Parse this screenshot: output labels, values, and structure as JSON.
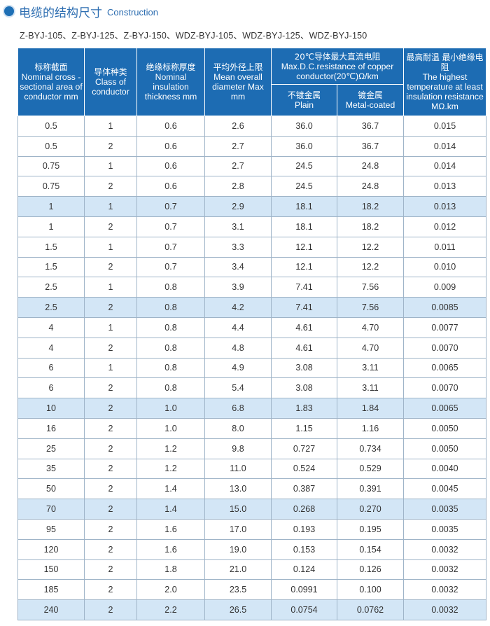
{
  "heading": {
    "title_cn": "电缆的结构尺寸",
    "title_en": "Construction"
  },
  "models": "Z-BYJ-105、Z-BYJ-125、Z-BYJ-150、WDZ-BYJ-105、WDZ-BYJ-125、WDZ-BYJ-150",
  "table": {
    "headers": {
      "area": {
        "cn": "标称截面",
        "en": "Nominal cross -sectional area of conductor mm"
      },
      "class": {
        "cn": "导体种类",
        "en": "Class of conductor"
      },
      "insulation": {
        "cn": "绝缘标称厚度",
        "en": "Nominal insulation thickness mm"
      },
      "diameter": {
        "cn": "平均外径上限",
        "en": "Mean overall diameter Max mm"
      },
      "resistance": {
        "cn": "20℃导体最大直流电阻",
        "en": "Max.D.C.resistance of copper conductor(20℃)Ω/km"
      },
      "plain": {
        "cn": "不镀金属",
        "en": "Plain"
      },
      "coated": {
        "cn": "镀金属",
        "en": "Metal-coated"
      },
      "temperature": {
        "cn": "最高耐温 最小绝缘电阻",
        "en": "The highest temperature at least insulation resistance MΩ.km"
      }
    },
    "rows": [
      {
        "area": "0.5",
        "class": "1",
        "insulation": "0.6",
        "diameter": "2.6",
        "plain": "36.0",
        "coated": "36.7",
        "resist": "0.015",
        "highlight": false
      },
      {
        "area": "0.5",
        "class": "2",
        "insulation": "0.6",
        "diameter": "2.7",
        "plain": "36.0",
        "coated": "36.7",
        "resist": "0.014",
        "highlight": false
      },
      {
        "area": "0.75",
        "class": "1",
        "insulation": "0.6",
        "diameter": "2.7",
        "plain": "24.5",
        "coated": "24.8",
        "resist": "0.014",
        "highlight": false
      },
      {
        "area": "0.75",
        "class": "2",
        "insulation": "0.6",
        "diameter": "2.8",
        "plain": "24.5",
        "coated": "24.8",
        "resist": "0.013",
        "highlight": false
      },
      {
        "area": "1",
        "class": "1",
        "insulation": "0.7",
        "diameter": "2.9",
        "plain": "18.1",
        "coated": "18.2",
        "resist": "0.013",
        "highlight": true
      },
      {
        "area": "1",
        "class": "2",
        "insulation": "0.7",
        "diameter": "3.1",
        "plain": "18.1",
        "coated": "18.2",
        "resist": "0.012",
        "highlight": false
      },
      {
        "area": "1.5",
        "class": "1",
        "insulation": "0.7",
        "diameter": "3.3",
        "plain": "12.1",
        "coated": "12.2",
        "resist": "0.011",
        "highlight": false
      },
      {
        "area": "1.5",
        "class": "2",
        "insulation": "0.7",
        "diameter": "3.4",
        "plain": "12.1",
        "coated": "12.2",
        "resist": "0.010",
        "highlight": false
      },
      {
        "area": "2.5",
        "class": "1",
        "insulation": "0.8",
        "diameter": "3.9",
        "plain": "7.41",
        "coated": "7.56",
        "resist": "0.009",
        "highlight": false
      },
      {
        "area": "2.5",
        "class": "2",
        "insulation": "0.8",
        "diameter": "4.2",
        "plain": "7.41",
        "coated": "7.56",
        "resist": "0.0085",
        "highlight": true
      },
      {
        "area": "4",
        "class": "1",
        "insulation": "0.8",
        "diameter": "4.4",
        "plain": "4.61",
        "coated": "4.70",
        "resist": "0.0077",
        "highlight": false
      },
      {
        "area": "4",
        "class": "2",
        "insulation": "0.8",
        "diameter": "4.8",
        "plain": "4.61",
        "coated": "4.70",
        "resist": "0.0070",
        "highlight": false
      },
      {
        "area": "6",
        "class": "1",
        "insulation": "0.8",
        "diameter": "4.9",
        "plain": "3.08",
        "coated": "3.11",
        "resist": "0.0065",
        "highlight": false
      },
      {
        "area": "6",
        "class": "2",
        "insulation": "0.8",
        "diameter": "5.4",
        "plain": "3.08",
        "coated": "3.11",
        "resist": "0.0070",
        "highlight": false
      },
      {
        "area": "10",
        "class": "2",
        "insulation": "1.0",
        "diameter": "6.8",
        "plain": "1.83",
        "coated": "1.84",
        "resist": "0.0065",
        "highlight": true
      },
      {
        "area": "16",
        "class": "2",
        "insulation": "1.0",
        "diameter": "8.0",
        "plain": "1.15",
        "coated": "1.16",
        "resist": "0.0050",
        "highlight": false
      },
      {
        "area": "25",
        "class": "2",
        "insulation": "1.2",
        "diameter": "9.8",
        "plain": "0.727",
        "coated": "0.734",
        "resist": "0.0050",
        "highlight": false
      },
      {
        "area": "35",
        "class": "2",
        "insulation": "1.2",
        "diameter": "11.0",
        "plain": "0.524",
        "coated": "0.529",
        "resist": "0.0040",
        "highlight": false
      },
      {
        "area": "50",
        "class": "2",
        "insulation": "1.4",
        "diameter": "13.0",
        "plain": "0.387",
        "coated": "0.391",
        "resist": "0.0045",
        "highlight": false
      },
      {
        "area": "70",
        "class": "2",
        "insulation": "1.4",
        "diameter": "15.0",
        "plain": "0.268",
        "coated": "0.270",
        "resist": "0.0035",
        "highlight": true
      },
      {
        "area": "95",
        "class": "2",
        "insulation": "1.6",
        "diameter": "17.0",
        "plain": "0.193",
        "coated": "0.195",
        "resist": "0.0035",
        "highlight": false
      },
      {
        "area": "120",
        "class": "2",
        "insulation": "1.6",
        "diameter": "19.0",
        "plain": "0.153",
        "coated": "0.154",
        "resist": "0.0032",
        "highlight": false
      },
      {
        "area": "150",
        "class": "2",
        "insulation": "1.8",
        "diameter": "21.0",
        "plain": "0.124",
        "coated": "0.126",
        "resist": "0.0032",
        "highlight": false
      },
      {
        "area": "185",
        "class": "2",
        "insulation": "2.0",
        "diameter": "23.5",
        "plain": "0.0991",
        "coated": "0.100",
        "resist": "0.0032",
        "highlight": false
      },
      {
        "area": "240",
        "class": "2",
        "insulation": "2.2",
        "diameter": "26.5",
        "plain": "0.0754",
        "coated": "0.0762",
        "resist": "0.0032",
        "highlight": true
      }
    ]
  }
}
